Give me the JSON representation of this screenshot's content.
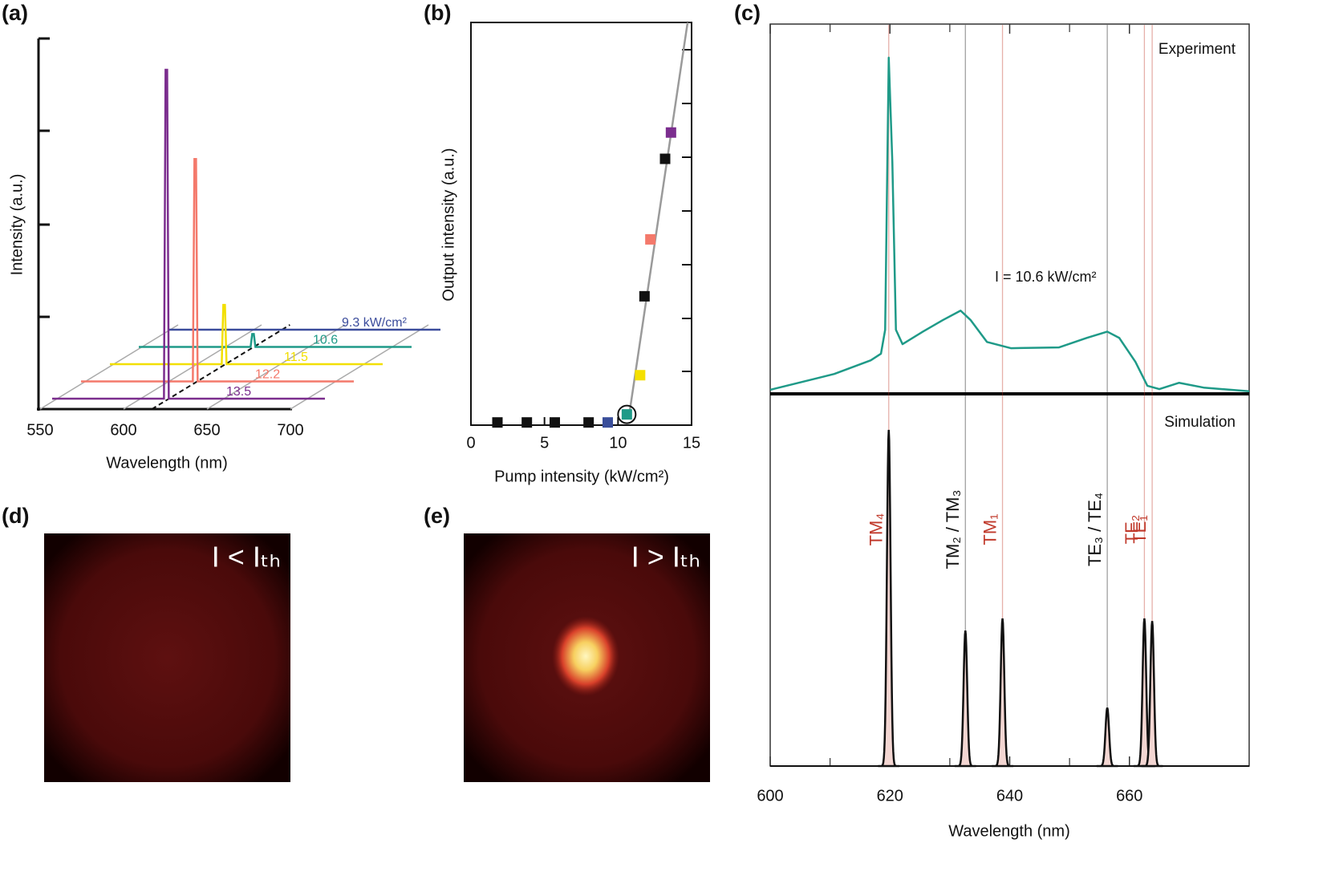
{
  "chart_data": [
    {
      "type": "waterfall",
      "panel": "(a)",
      "xlabel": "Wavelength (nm)",
      "ylabel": "Intensity (a.u.)",
      "xlim": [
        550,
        700
      ],
      "xticks": [
        550,
        600,
        650,
        700
      ],
      "ylim": [
        0,
        4
      ],
      "peak_x": 617,
      "series": [
        {
          "name": "9.3 kW/cm²",
          "color": "#3b4c9c",
          "values": [
            0
          ]
        },
        {
          "name": "10.6",
          "color": "#1f9a88",
          "values": [
            0.14
          ]
        },
        {
          "name": "11.5",
          "color": "#f2df00",
          "values": [
            0.64
          ]
        },
        {
          "name": "12.2",
          "color": "#f4796b",
          "values": [
            2.4
          ]
        },
        {
          "name": "13.5",
          "color": "#7b2d8e",
          "values": [
            3.55
          ]
        }
      ]
    },
    {
      "type": "scatter",
      "panel": "(b)",
      "xlabel": "Pump intensity (kW/cm²)",
      "ylabel": "Output intensity (a.u.)",
      "xlim": [
        0,
        15
      ],
      "xticks": [
        0,
        5,
        10,
        15
      ],
      "ylim": [
        0,
        7.5
      ],
      "series": [
        {
          "x": [
            1.8,
            3.8,
            5.7,
            8.0,
            9.3,
            10.6,
            11.5,
            11.8,
            12.2,
            13.2,
            13.6
          ],
          "values": [
            0.05,
            0.05,
            0.05,
            0.05,
            0.05,
            0.2,
            0.93,
            2.4,
            3.46,
            4.96,
            5.45
          ],
          "colors": [
            "#111111",
            "#111111",
            "#111111",
            "#111111",
            "#3a4e9a",
            "#1f9a88",
            "#f5e000",
            "#111111",
            "#f4796b",
            "#111111",
            "#7b2d8e"
          ]
        },
        {
          "type": "line",
          "color": "#9a9a9a",
          "x": [
            10.8,
            14.73
          ],
          "values": [
            0.27,
            7.5
          ]
        }
      ]
    },
    {
      "type": "spectra",
      "panel": "(c)",
      "xlabel": "Wavelength (nm)",
      "xlim": [
        600,
        680
      ],
      "xticks": [
        600,
        620,
        640,
        660
      ],
      "experiment_label": "Experiment",
      "annotation": "I = 10.6 kW/cm²",
      "ylim": [
        0,
        100
      ],
      "series": [
        {
          "color": "#1f9a88",
          "x": [
            600,
            610.7,
            616.8,
            618.5,
            619.2,
            619.8,
            620.4,
            621.0,
            622.1,
            625.5,
            628.8,
            631.8,
            633.5,
            636.2,
            640.2,
            648.2,
            652.9,
            656.3,
            658.3,
            661.0,
            663.0,
            665.0,
            668.3,
            672.4,
            680
          ],
          "values": [
            1.1,
            5.4,
            9.1,
            10.9,
            17.4,
            91.3,
            63.0,
            17.4,
            13.5,
            16.9,
            20.0,
            22.6,
            20.0,
            14.1,
            12.4,
            12.6,
            15.2,
            16.9,
            15.2,
            8.7,
            2.2,
            1.3,
            3.0,
            1.7,
            0.7
          ]
        }
      ],
      "simulation_label": "Simulation",
      "sim_ylim": [
        0,
        100
      ],
      "modes": [
        {
          "label": "TM₄",
          "x": 619.8,
          "value": 91.1,
          "color": "#c0392b"
        },
        {
          "label": "TM₂ / TM₃",
          "x": 632.6,
          "value": 36.7,
          "color": "#111111"
        },
        {
          "label": "TM₁",
          "x": 638.8,
          "value": 40.0,
          "color": "#c0392b"
        },
        {
          "label": "TE₃ / TE₄",
          "x": 656.3,
          "value": 15.8,
          "color": "#111111"
        },
        {
          "label": "TE₂",
          "x": 662.5,
          "value": 40.0,
          "color": "#c0392b"
        },
        {
          "label": "TE₁",
          "x": 663.8,
          "value": 39.3,
          "color": "#c0392b"
        }
      ]
    }
  ],
  "images": [
    {
      "panel": "(d)",
      "caption": "I < Iₜₕ"
    },
    {
      "panel": "(e)",
      "caption": "I > Iₜₕ"
    }
  ]
}
